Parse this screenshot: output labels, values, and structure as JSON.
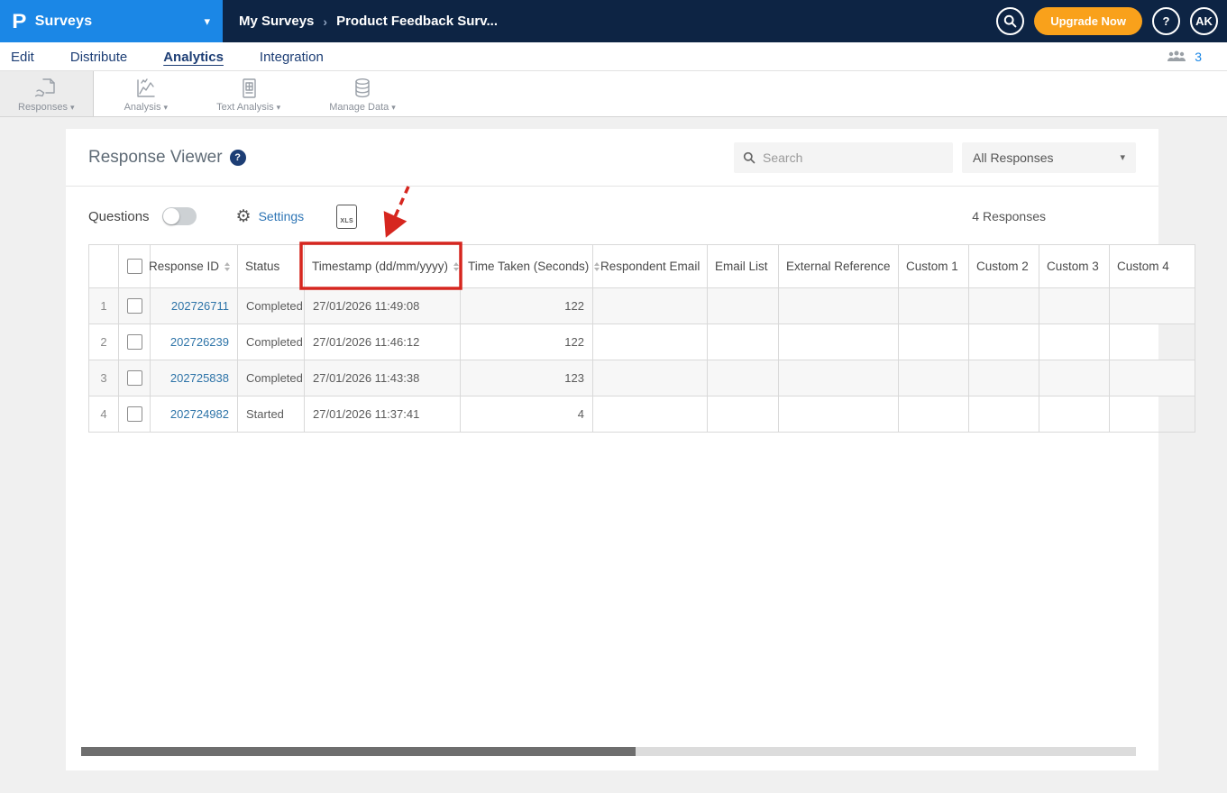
{
  "topbar": {
    "logo": "P",
    "product": "Surveys",
    "breadcrumb": {
      "parent": "My Surveys",
      "current": "Product Feedback Surv..."
    },
    "upgrade_label": "Upgrade Now",
    "help_label": "?",
    "avatar_initials": "AK"
  },
  "nav": {
    "tabs": [
      "Edit",
      "Distribute",
      "Analytics",
      "Integration"
    ],
    "active_tab": "Analytics",
    "collaborators_count": "3"
  },
  "toolbar": {
    "items": [
      {
        "label": "Responses",
        "active": true
      },
      {
        "label": "Analysis",
        "active": false
      },
      {
        "label": "Text Analysis",
        "active": false
      },
      {
        "label": "Manage Data",
        "active": false
      }
    ]
  },
  "viewer": {
    "title": "Response Viewer",
    "help_label": "?",
    "search_placeholder": "Search",
    "filter_value": "All Responses",
    "questions_label": "Questions",
    "questions_toggle_on": false,
    "settings_label": "Settings",
    "xls_label": "XLS",
    "responses_count": "4 Responses"
  },
  "table": {
    "columns": [
      {
        "key": "row_number",
        "label": "",
        "width": 33,
        "align": "center",
        "sortable": false
      },
      {
        "key": "select",
        "label": "",
        "width": 35,
        "align": "center",
        "sortable": false
      },
      {
        "key": "response_id",
        "label": "Response ID",
        "width": 97,
        "align": "right",
        "sortable": true
      },
      {
        "key": "status",
        "label": "Status",
        "width": 74,
        "sortable": false
      },
      {
        "key": "timestamp",
        "label": "Timestamp (dd/mm/yyyy)",
        "width": 173,
        "sortable": true,
        "highlighted": true
      },
      {
        "key": "time_taken",
        "label": "Time Taken (Seconds)",
        "width": 147,
        "sortable": true
      },
      {
        "key": "respondent_email",
        "label": "Respondent Email",
        "width": 127,
        "sortable": false
      },
      {
        "key": "email_list",
        "label": "Email List",
        "width": 79,
        "sortable": false
      },
      {
        "key": "external_reference",
        "label": "External Reference",
        "width": 133,
        "sortable": false
      },
      {
        "key": "custom1",
        "label": "Custom 1",
        "width": 78,
        "align": "center",
        "sortable": false
      },
      {
        "key": "custom2",
        "label": "Custom 2",
        "width": 78,
        "align": "center",
        "sortable": false
      },
      {
        "key": "custom3",
        "label": "Custom 3",
        "width": 78,
        "align": "center",
        "sortable": false
      },
      {
        "key": "custom4",
        "label": "Custom 4",
        "width": 95,
        "align": "center",
        "sortable": false
      }
    ],
    "rows": [
      {
        "row_number": "1",
        "response_id": "202726711",
        "status": "Completed",
        "timestamp": "27/01/2026 11:49:08",
        "time_taken": "122",
        "respondent_email": "",
        "email_list": "",
        "external_reference": "",
        "custom1": "",
        "custom2": "",
        "custom3": "",
        "custom4": ""
      },
      {
        "row_number": "2",
        "response_id": "202726239",
        "status": "Completed",
        "timestamp": "27/01/2026 11:46:12",
        "time_taken": "122",
        "respondent_email": "",
        "email_list": "",
        "external_reference": "",
        "custom1": "",
        "custom2": "",
        "custom3": "",
        "custom4": ""
      },
      {
        "row_number": "3",
        "response_id": "202725838",
        "status": "Completed",
        "timestamp": "27/01/2026 11:43:38",
        "time_taken": "123",
        "respondent_email": "",
        "email_list": "",
        "external_reference": "",
        "custom1": "",
        "custom2": "",
        "custom3": "",
        "custom4": ""
      },
      {
        "row_number": "4",
        "response_id": "202724982",
        "status": "Started",
        "timestamp": "27/01/2026 11:37:41",
        "time_taken": "4",
        "respondent_email": "",
        "email_list": "",
        "external_reference": "",
        "custom1": "",
        "custom2": "",
        "custom3": "",
        "custom4": ""
      }
    ]
  },
  "annotation": {
    "highlighted_column": "Timestamp (dd/mm/yyyy)",
    "highlight_color": "#d6261f",
    "arrow_style": "dashed"
  },
  "colors": {
    "brand_blue": "#1b87e6",
    "topbar_navy": "#0d2444",
    "nav_text_navy": "#1d3e75",
    "upgrade_orange": "#f9a11b",
    "link_blue": "#2e75b5",
    "response_id_blue": "#2e74a8",
    "annotation_red": "#d6261f"
  }
}
